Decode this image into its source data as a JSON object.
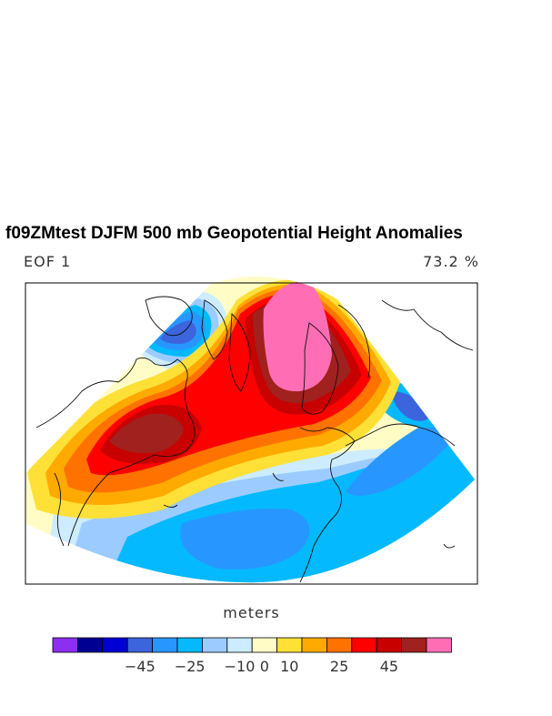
{
  "title": "f09ZMtest DJFM 500 mb Geopotential Height Anomalies",
  "subtitle_left": "EOF 1",
  "subtitle_right": "73.2 %",
  "units_label": "meters",
  "colorbar": {
    "colors": [
      "#8c2ff0",
      "#000092",
      "#0000d2",
      "#3c64dc",
      "#2896ff",
      "#05b9ff",
      "#9cccff",
      "#cdecff",
      "#fffcc6",
      "#ffe036",
      "#ffaa00",
      "#ff7200",
      "#ff0000",
      "#c80000",
      "#a0211e",
      "#ff6eb4"
    ],
    "tick_labels": [
      "-45",
      "-25",
      "-10",
      "0",
      "10",
      "25",
      "45"
    ]
  },
  "map": {
    "pattern": "NAO-like dipole",
    "high_center": "Arctic / Greenland Sea",
    "low_center": "subtropical North Atlantic"
  }
}
